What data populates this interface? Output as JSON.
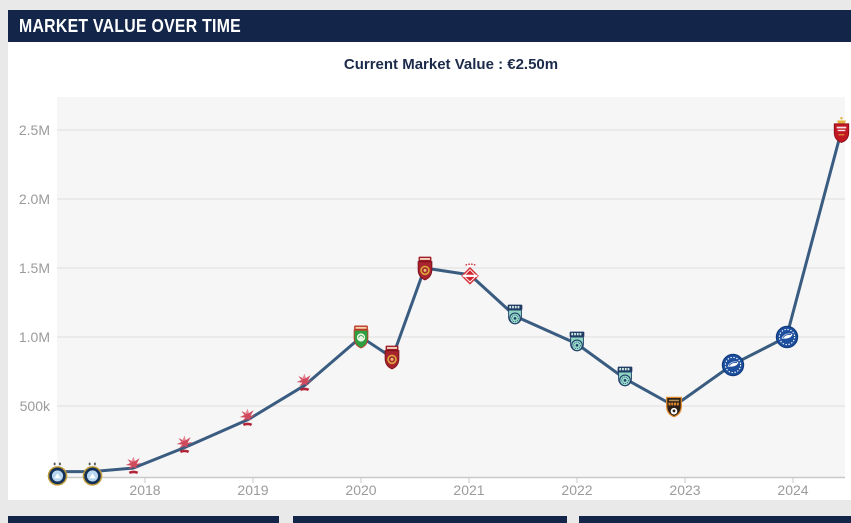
{
  "header": {
    "title": "MARKET VALUE OVER TIME"
  },
  "chart_header": {
    "text": "Current Market Value : €2.50m"
  },
  "colors": {
    "header_bg": "#13264a",
    "card_bg": "#ffffff",
    "page_bg": "#e9e9e9",
    "plot_bg": "#f6f6f6",
    "grid": "#dedede",
    "axis_line": "#c9c9c9",
    "axis_text": "#9b9b9b",
    "line": "#3a5c80",
    "subtitle_text": "#1c2b4a"
  },
  "chart_data": {
    "type": "line",
    "title": "Current Market Value : €2.50m",
    "xlabel": "",
    "ylabel": "",
    "grid": true,
    "legend": false,
    "x_ticks": [
      {
        "year": 2018,
        "label": "2018"
      },
      {
        "year": 2019,
        "label": "2019"
      },
      {
        "year": 2020,
        "label": "2020"
      },
      {
        "year": 2021,
        "label": "2021"
      },
      {
        "year": 2022,
        "label": "2022"
      },
      {
        "year": 2023,
        "label": "2023"
      },
      {
        "year": 2024,
        "label": "2024"
      }
    ],
    "y_ticks": [
      {
        "value": 500000,
        "label": "500k"
      },
      {
        "value": 1000000,
        "label": "1.0M"
      },
      {
        "value": 1500000,
        "label": "1.5M"
      },
      {
        "value": 2000000,
        "label": "2.0M"
      },
      {
        "value": 2500000,
        "label": "2.5M"
      }
    ],
    "xlim": [
      2017.1,
      2024.55
    ],
    "ylim": [
      0,
      2740000
    ],
    "series": [
      {
        "name": "Market value",
        "color": "#3a5c80",
        "points": [
          {
            "x": 2017.19,
            "y": 25000,
            "label": "€25k",
            "marker": "gold-round-crest"
          },
          {
            "x": 2017.51,
            "y": 25000,
            "label": "€25k",
            "marker": "gold-round-crest"
          },
          {
            "x": 2017.89,
            "y": 50000,
            "label": "€50k",
            "marker": "red-eagle-crest"
          },
          {
            "x": 2018.37,
            "y": 200000,
            "label": "€200k",
            "marker": "red-eagle-crest"
          },
          {
            "x": 2018.95,
            "y": 400000,
            "label": "€400k",
            "marker": "red-eagle-crest"
          },
          {
            "x": 2019.48,
            "y": 650000,
            "label": "€650k",
            "marker": "red-eagle-crest"
          },
          {
            "x": 2020.0,
            "y": 1000000,
            "label": "€1.00m",
            "marker": "green-shield-crest"
          },
          {
            "x": 2020.29,
            "y": 850000,
            "label": "€850k",
            "marker": "red-shield-crest"
          },
          {
            "x": 2020.59,
            "y": 1500000,
            "label": "€1.50m",
            "marker": "red-shield-crest"
          },
          {
            "x": 2021.01,
            "y": 1450000,
            "label": "€1.45m",
            "marker": "red-diamond-crest"
          },
          {
            "x": 2021.43,
            "y": 1150000,
            "label": "€1.15m",
            "marker": "teal-crest"
          },
          {
            "x": 2022.0,
            "y": 950000,
            "label": "€950k",
            "marker": "teal-crest"
          },
          {
            "x": 2022.44,
            "y": 700000,
            "label": "€700k",
            "marker": "teal-crest"
          },
          {
            "x": 2022.9,
            "y": 500000,
            "label": "€500k",
            "marker": "ural-shield-crest"
          },
          {
            "x": 2023.44,
            "y": 800000,
            "label": "€800k",
            "marker": "blue-round-crest"
          },
          {
            "x": 2023.94,
            "y": 1000000,
            "label": "€1.00m",
            "marker": "blue-round-crest"
          },
          {
            "x": 2024.45,
            "y": 2500000,
            "label": "€2.50m",
            "marker": "red-crown-crest"
          }
        ]
      }
    ]
  }
}
